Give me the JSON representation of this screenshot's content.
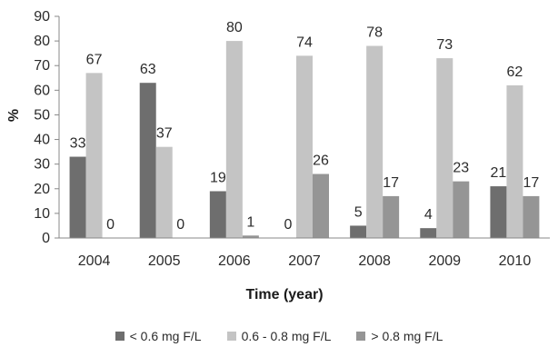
{
  "chart_data": {
    "type": "bar",
    "categories": [
      "2004",
      "2005",
      "2006",
      "2007",
      "2008",
      "2009",
      "2010"
    ],
    "series": [
      {
        "name": "< 0.6 mg F/L",
        "color": "#6e6e6e",
        "values": [
          33,
          63,
          19,
          0,
          5,
          4,
          21
        ]
      },
      {
        "name": "0.6 - 0.8 mg F/L",
        "color": "#c4c4c4",
        "values": [
          67,
          37,
          80,
          74,
          78,
          73,
          62
        ]
      },
      {
        "name": "> 0.8 mg F/L",
        "color": "#959595",
        "values": [
          0,
          0,
          1,
          26,
          17,
          23,
          17
        ]
      }
    ],
    "xlabel": "Time (year)",
    "ylabel": "%",
    "ylim": [
      0,
      90
    ],
    "yticks": [
      0,
      10,
      20,
      30,
      40,
      50,
      60,
      70,
      80,
      90
    ],
    "grid": false,
    "legend_position": "bottom"
  }
}
